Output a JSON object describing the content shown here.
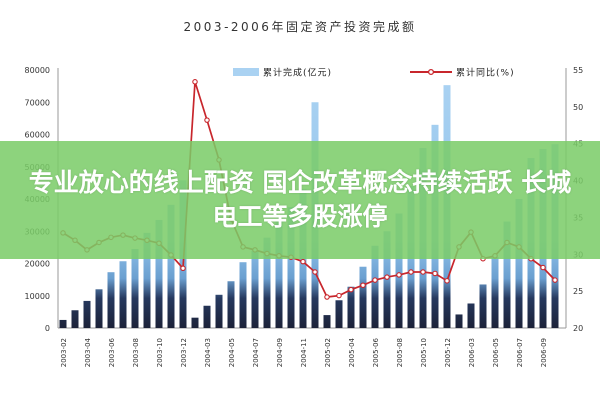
{
  "banner": {
    "line1": "专业放心的线上配资 国企改革概念持续活跃 长城",
    "line2": "电工等多股涨停"
  },
  "chart_data": {
    "type": "bar",
    "title": "2003-2006年固定资产投资完成额",
    "legend": "top",
    "grid": false,
    "x_tick_labels": [
      "2003-02",
      "2003-04",
      "2003-06",
      "2003-08",
      "2003-10",
      "2003-12",
      "2004-03",
      "2004-05",
      "2004-07",
      "2004-09",
      "2004-11",
      "2005-02",
      "2005-04",
      "2005-06",
      "2005-08",
      "2005-10",
      "2005-12",
      "2006-03",
      "2006-05",
      "2006-07",
      "2006-09"
    ],
    "ylim": [
      0,
      80000
    ],
    "y_ticks": [
      0,
      10000,
      20000,
      30000,
      40000,
      50000,
      60000,
      70000,
      80000
    ],
    "y2lim": [
      20,
      55
    ],
    "y2_ticks": [
      20,
      25,
      30,
      35,
      40,
      45,
      50,
      55
    ],
    "series": [
      {
        "name": "累计完成(亿元)",
        "type": "bar",
        "axis": "left",
        "color": "#92c3ea",
        "values": [
          2500,
          5500,
          8400,
          12000,
          17300,
          20700,
          24500,
          29500,
          33500,
          38200,
          45800,
          3200,
          6900,
          10300,
          14500,
          20400,
          24000,
          28000,
          33000,
          37500,
          43000,
          70000,
          4000,
          8600,
          12800,
          19000,
          25500,
          30000,
          35500,
          44000,
          55800,
          63000,
          75300,
          4200,
          7600,
          13500,
          22000,
          33000,
          40000,
          52700,
          55500,
          57000
        ]
      },
      {
        "name": "累计同比(%)",
        "type": "line",
        "axis": "right",
        "color": "#c8262c",
        "values": [
          32.9,
          31.9,
          30.6,
          31.6,
          32.3,
          32.6,
          32.2,
          31.9,
          31.5,
          29.9,
          28.1,
          53.4,
          48.2,
          42.8,
          34.8,
          31.0,
          30.6,
          30.1,
          29.8,
          29.6,
          29.0,
          27.6,
          24.2,
          24.4,
          25.2,
          25.8,
          26.5,
          26.9,
          27.2,
          27.6,
          27.6,
          27.4,
          26.4,
          31.0,
          33.0,
          29.4,
          29.8,
          31.6,
          31.0,
          29.4,
          28.2,
          26.5
        ]
      }
    ]
  }
}
